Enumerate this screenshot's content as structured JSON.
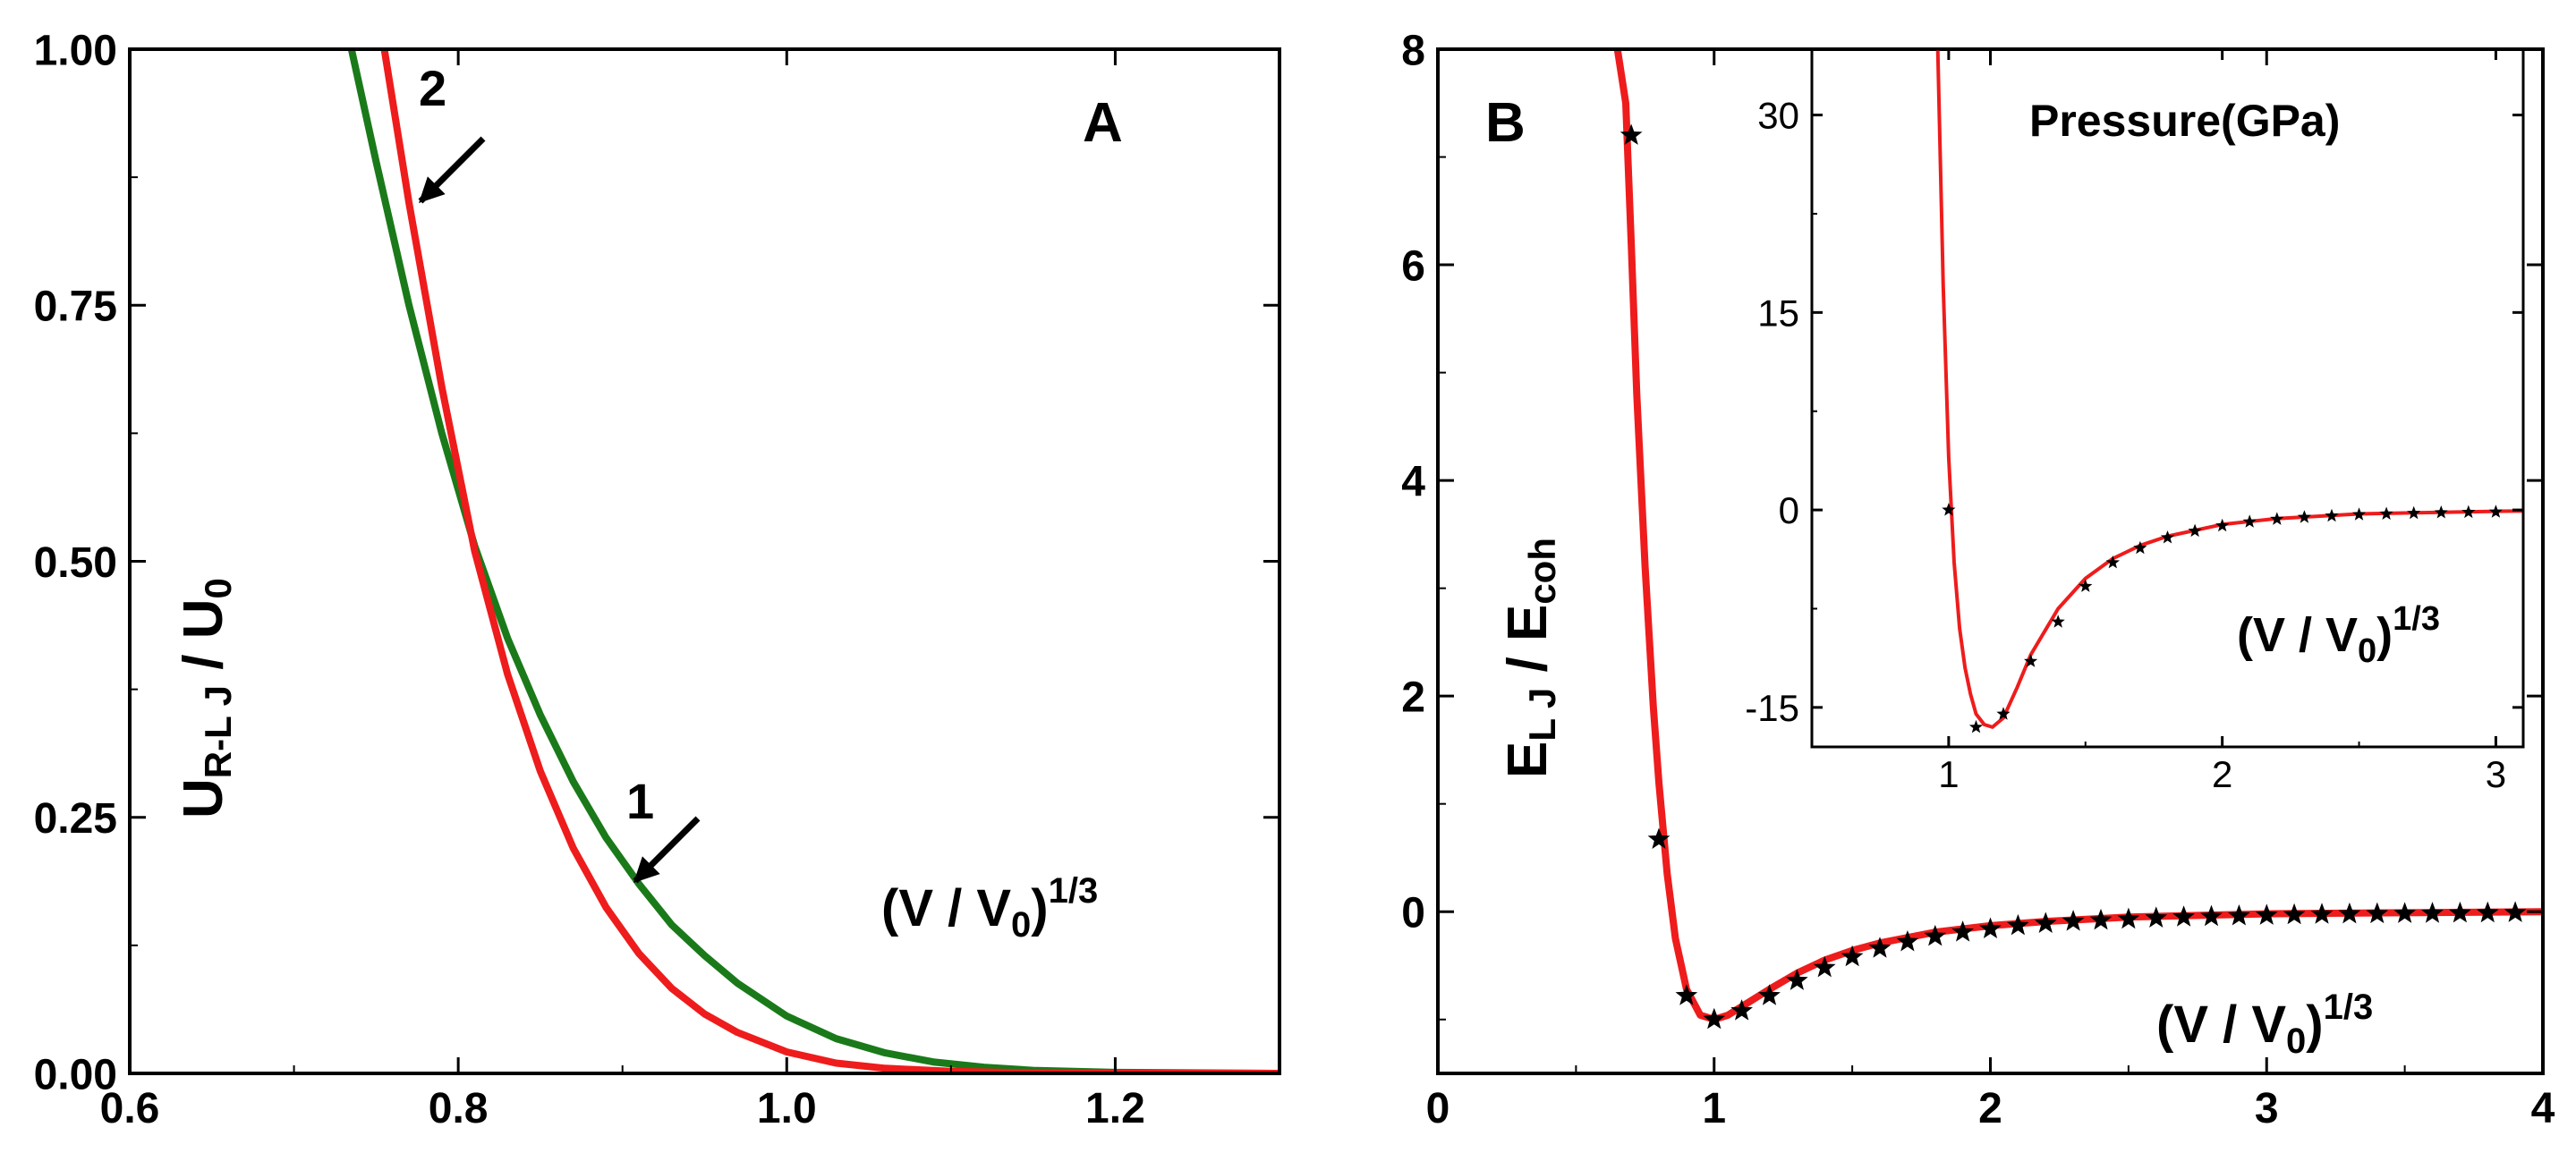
{
  "chart_data": [
    {
      "type": "line",
      "panel": "A",
      "panel_label": "A",
      "xlim": [
        0.6,
        1.3
      ],
      "ylim": [
        0.0,
        1.0
      ],
      "x_ticks": [
        "0.6",
        "0.8",
        "1.0",
        "1.2"
      ],
      "y_ticks": [
        "0.00",
        "0.25",
        "0.50",
        "0.75",
        "1.00"
      ],
      "ylabel": {
        "main": "U",
        "sub": "R-L J",
        "slash": " / U",
        "sub2": "0"
      },
      "xlabel": {
        "pre": "(V / V",
        "sub": "0",
        "post": ")",
        "sup": "1/3"
      },
      "series": [
        {
          "name": "1",
          "color": "#1a7a1a",
          "x": [
            0.735,
            0.75,
            0.77,
            0.79,
            0.81,
            0.83,
            0.85,
            0.87,
            0.89,
            0.91,
            0.93,
            0.95,
            0.97,
            1.0,
            1.03,
            1.06,
            1.09,
            1.12,
            1.15,
            1.2,
            1.3
          ],
          "y": [
            1.0,
            0.89,
            0.75,
            0.625,
            0.515,
            0.425,
            0.35,
            0.285,
            0.23,
            0.185,
            0.145,
            0.115,
            0.088,
            0.056,
            0.034,
            0.02,
            0.011,
            0.006,
            0.003,
            0.001,
            0.0
          ]
        },
        {
          "name": "2",
          "color": "#ee1c1c",
          "x": [
            0.755,
            0.77,
            0.79,
            0.81,
            0.83,
            0.85,
            0.87,
            0.89,
            0.91,
            0.93,
            0.95,
            0.97,
            1.0,
            1.03,
            1.06,
            1.1,
            1.15,
            1.2,
            1.3
          ],
          "y": [
            1.0,
            0.85,
            0.67,
            0.51,
            0.39,
            0.295,
            0.22,
            0.162,
            0.117,
            0.083,
            0.058,
            0.04,
            0.021,
            0.01,
            0.005,
            0.002,
            0.0005,
            0.0,
            0.0
          ]
        }
      ],
      "annotations": [
        {
          "text": "2",
          "target": [
            0.768,
            0.86
          ]
        },
        {
          "text": "1",
          "target": [
            0.915,
            0.19
          ]
        }
      ]
    },
    {
      "type": "line",
      "panel": "B",
      "panel_label": "B",
      "xlim": [
        0,
        4
      ],
      "ylim": [
        -1.5,
        8
      ],
      "x_ticks": [
        "0",
        "1",
        "2",
        "3",
        "4"
      ],
      "y_ticks": [
        "0",
        "2",
        "4",
        "6",
        "8"
      ],
      "ylabel": {
        "main": "E",
        "sub": "L J",
        "slash": " / E",
        "sub2": "coh"
      },
      "xlabel": {
        "pre": "(V / V",
        "sub": "0",
        "post": ")",
        "sup": "1/3"
      },
      "series": [
        {
          "name": "E_LJ curve",
          "color": "#ee1c1c",
          "x": [
            0.65,
            0.68,
            0.7,
            0.72,
            0.75,
            0.78,
            0.8,
            0.83,
            0.86,
            0.9,
            0.95,
            1.0,
            1.05,
            1.1,
            1.2,
            1.3,
            1.4,
            1.5,
            1.6,
            1.8,
            2.0,
            2.2,
            2.5,
            3.0,
            3.5,
            4.0
          ],
          "y": [
            8.0,
            7.5,
            6.2,
            4.8,
            3.2,
            1.9,
            1.2,
            0.35,
            -0.25,
            -0.72,
            -0.96,
            -1.0,
            -0.96,
            -0.88,
            -0.72,
            -0.57,
            -0.45,
            -0.36,
            -0.29,
            -0.19,
            -0.13,
            -0.09,
            -0.05,
            -0.02,
            -0.01,
            0.0
          ]
        },
        {
          "name": "stars",
          "marker": "star",
          "color": "#000000",
          "x": [
            0.7,
            0.8,
            0.9,
            1.0,
            1.1,
            1.2,
            1.3,
            1.4,
            1.5,
            1.6,
            1.7,
            1.8,
            1.9,
            2.0,
            2.1,
            2.2,
            2.3,
            2.4,
            2.5,
            2.6,
            2.7,
            2.8,
            2.9,
            3.0,
            3.1,
            3.2,
            3.3,
            3.4,
            3.5,
            3.6,
            3.7,
            3.8,
            3.9
          ],
          "y": [
            7.2,
            0.67,
            -0.78,
            -1.0,
            -0.92,
            -0.78,
            -0.64,
            -0.52,
            -0.42,
            -0.34,
            -0.28,
            -0.23,
            -0.19,
            -0.16,
            -0.13,
            -0.11,
            -0.09,
            -0.08,
            -0.07,
            -0.06,
            -0.05,
            -0.045,
            -0.04,
            -0.035,
            -0.03,
            -0.025,
            -0.022,
            -0.02,
            -0.018,
            -0.016,
            -0.014,
            -0.012,
            -0.01
          ]
        }
      ]
    },
    {
      "type": "line",
      "panel": "B-inset",
      "title": "Pressure(GPa)",
      "xlim": [
        0.5,
        3.1
      ],
      "ylim": [
        -18,
        35
      ],
      "x_ticks": [
        "1",
        "2",
        "3"
      ],
      "y_ticks": [
        "-15",
        "0",
        "15",
        "30"
      ],
      "xlabel": {
        "pre": "(V / V",
        "sub": "0",
        "post": ")",
        "sup": "1/3"
      },
      "series": [
        {
          "name": "Pressure curve",
          "color": "#ee1c1c",
          "x": [
            0.96,
            0.98,
            1.0,
            1.02,
            1.04,
            1.06,
            1.08,
            1.1,
            1.13,
            1.16,
            1.2,
            1.25,
            1.3,
            1.4,
            1.5,
            1.6,
            1.7,
            1.8,
            2.0,
            2.2,
            2.5,
            3.0,
            3.1
          ],
          "y": [
            35,
            17,
            4,
            -4,
            -9,
            -12,
            -14,
            -15.5,
            -16.3,
            -16.5,
            -15.8,
            -13.5,
            -11,
            -7.5,
            -5.2,
            -3.7,
            -2.7,
            -2.0,
            -1.1,
            -0.65,
            -0.3,
            -0.1,
            -0.08
          ]
        },
        {
          "name": "stars",
          "marker": "star",
          "color": "#000000",
          "x": [
            1.0,
            1.1,
            1.2,
            1.3,
            1.4,
            1.5,
            1.6,
            1.7,
            1.8,
            1.9,
            2.0,
            2.1,
            2.2,
            2.3,
            2.4,
            2.5,
            2.6,
            2.7,
            2.8,
            2.9,
            3.0
          ],
          "y": [
            0.0,
            -16.5,
            -15.5,
            -11.5,
            -8.5,
            -5.8,
            -4.0,
            -2.9,
            -2.1,
            -1.6,
            -1.2,
            -0.9,
            -0.7,
            -0.55,
            -0.45,
            -0.35,
            -0.3,
            -0.25,
            -0.2,
            -0.17,
            -0.15
          ]
        }
      ]
    }
  ]
}
